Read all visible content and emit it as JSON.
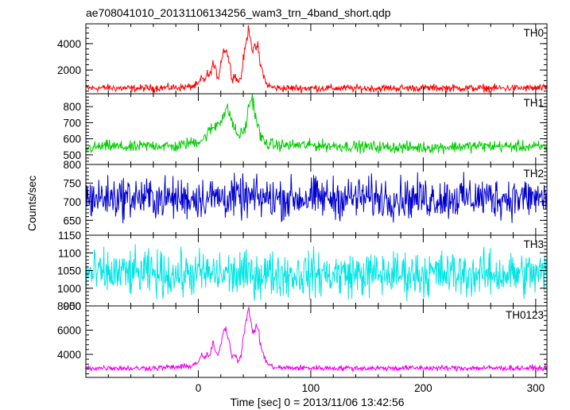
{
  "chart_data": {
    "type": "line",
    "title": "ae708041010_20131106134256_wam3_trn_4band_short.qdp",
    "xlabel": "Time [sec] 0 = 2013/11/06 13:42:56",
    "ylabel": "Counts/sec",
    "xlim": [
      -100,
      310
    ],
    "x_ticks": [
      0,
      100,
      200,
      300
    ],
    "grid": false,
    "panels": [
      {
        "name": "TH0",
        "color": "#ff0000",
        "ylim": [
          200,
          5500
        ],
        "y_ticks": [
          2000,
          4000
        ],
        "x": [
          -100,
          -80,
          -60,
          -40,
          -20,
          -10,
          -5,
          0,
          3,
          5,
          8,
          10,
          13,
          15,
          18,
          20,
          23,
          25,
          28,
          30,
          33,
          35,
          38,
          40,
          43,
          45,
          48,
          50,
          53,
          55,
          58,
          60,
          65,
          70,
          80,
          100,
          150,
          200,
          250,
          300,
          310
        ],
        "values": [
          620,
          650,
          600,
          640,
          680,
          700,
          760,
          900,
          1400,
          1200,
          1700,
          1500,
          2500,
          2000,
          1400,
          2600,
          3600,
          3500,
          2400,
          1400,
          1600,
          1100,
          1400,
          2800,
          4300,
          5300,
          3500,
          3600,
          3800,
          2400,
          1700,
          1000,
          700,
          640,
          620,
          630,
          610,
          640,
          620,
          630,
          620
        ]
      },
      {
        "name": "TH1",
        "color": "#00cc00",
        "ylim": [
          440,
          880
        ],
        "y_ticks": [
          500,
          600,
          700,
          800
        ],
        "x": [
          -100,
          -80,
          -60,
          -40,
          -20,
          -10,
          0,
          5,
          10,
          15,
          20,
          25,
          28,
          30,
          35,
          40,
          43,
          45,
          48,
          50,
          55,
          60,
          70,
          80,
          100,
          150,
          200,
          250,
          300,
          310
        ],
        "values": [
          540,
          555,
          545,
          560,
          550,
          570,
          585,
          600,
          650,
          680,
          720,
          780,
          760,
          700,
          620,
          640,
          700,
          810,
          860,
          770,
          620,
          570,
          560,
          560,
          560,
          550,
          545,
          555,
          550,
          545
        ]
      },
      {
        "name": "TH2",
        "color": "#0000cc",
        "ylim": [
          610,
          800
        ],
        "y_ticks": [
          650,
          700,
          750,
          800
        ],
        "x": [
          -100,
          -60,
          -20,
          0,
          20,
          40,
          60,
          100,
          150,
          200,
          250,
          300,
          310
        ],
        "values": [
          710,
          712,
          708,
          711,
          712,
          710,
          709,
          710,
          711,
          709,
          711,
          710,
          710
        ]
      },
      {
        "name": "TH3",
        "color": "#00e5e5",
        "ylim": [
          950,
          1150
        ],
        "y_ticks": [
          950,
          1000,
          1050,
          1100,
          1150
        ],
        "x": [
          -100,
          -60,
          -20,
          0,
          20,
          40,
          60,
          100,
          150,
          200,
          250,
          300,
          310
        ],
        "values": [
          1040,
          1042,
          1038,
          1041,
          1040,
          1039,
          1041,
          1040,
          1039,
          1041,
          1040,
          1040,
          1040
        ]
      },
      {
        "name": "TH0123",
        "color": "#ee00ee",
        "ylim": [
          2100,
          8000
        ],
        "y_ticks": [
          4000,
          6000,
          8000
        ],
        "x": [
          -100,
          -80,
          -60,
          -40,
          -20,
          -10,
          -5,
          0,
          3,
          5,
          8,
          10,
          13,
          15,
          18,
          20,
          23,
          25,
          28,
          30,
          33,
          35,
          38,
          40,
          43,
          45,
          48,
          50,
          53,
          55,
          58,
          60,
          65,
          70,
          80,
          100,
          150,
          200,
          250,
          300,
          310
        ],
        "values": [
          2850,
          2900,
          2850,
          2880,
          2950,
          3000,
          3100,
          3400,
          3900,
          3700,
          4000,
          3800,
          4900,
          4300,
          3800,
          5000,
          6100,
          6000,
          4900,
          3800,
          4000,
          3500,
          3900,
          5400,
          6900,
          7900,
          5900,
          6000,
          6300,
          4900,
          4000,
          3400,
          3000,
          2900,
          2880,
          2880,
          2860,
          2880,
          2870,
          2870,
          2860
        ]
      }
    ]
  }
}
